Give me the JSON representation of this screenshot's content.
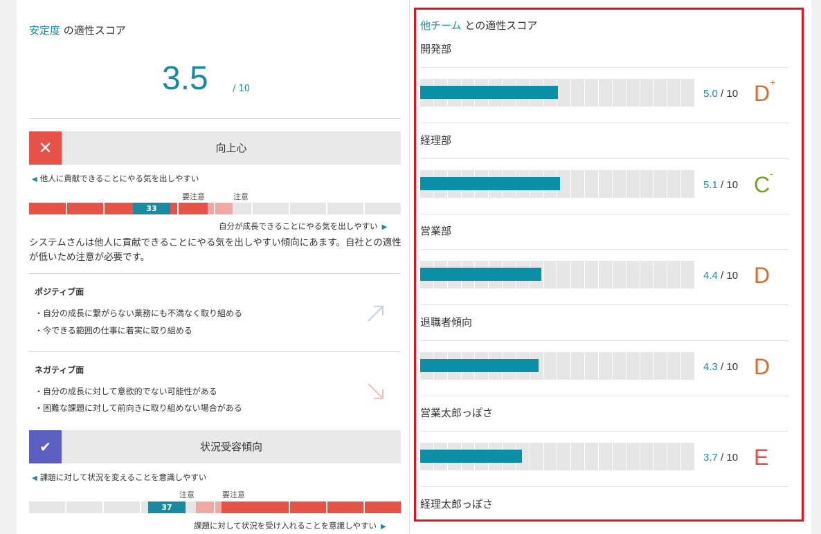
{
  "left": {
    "score_title_accent": "安定度",
    "score_title_rest": "の適性スコア",
    "score": "3.5",
    "score_total": "/ 10",
    "traits": [
      {
        "name": "向上心",
        "status": "ng",
        "mark_color": "#e55348",
        "left_hint": "他人に貢献できることにやる気を出しやすい",
        "right_hint": "自分が成長できることにやる気を出しやすい",
        "value": 33,
        "zones": [
          "要注意",
          "注意"
        ]
      },
      {
        "name": "状況受容傾向",
        "status": "ok",
        "mark_color": "#5c5fbf",
        "left_hint": "課題に対して状況を変えることを意識しやすい",
        "right_hint": "課題に対して状況を受け入れることを意識しやすい",
        "value": 37,
        "zones": [
          "注意",
          "要注意"
        ]
      }
    ],
    "description": "システムさんは他人に貢献できることにやる気を出しやすい傾向にあます。自社との適性が低いため注意が必要です。",
    "positive": {
      "title": "ポジティブ面",
      "items": [
        "自分の成長に繋がらない業務にも不満なく取り組める",
        "今できる範囲の仕事に着実に取り組める"
      ]
    },
    "negative": {
      "title": "ネガティブ面",
      "items": [
        "自分の成長に対して意欲的でない可能性がある",
        "困難な課題に対して前向きに取り組めない場合がある"
      ]
    },
    "colors": {
      "danger": "#e55348",
      "caution": "#f0a8a3",
      "accent": "#1a8aa0"
    }
  },
  "right": {
    "title_accent": "他チーム",
    "title_rest": "との適性スコア",
    "teams": [
      {
        "name": "開発部",
        "score": 5.0,
        "score_text": "5.0",
        "total": "/ 10",
        "grade": "D",
        "grade_mod": "+",
        "grade_color": "#d86b2a"
      },
      {
        "name": "経理部",
        "score": 5.1,
        "score_text": "5.1",
        "total": "/ 10",
        "grade": "C",
        "grade_mod": "-",
        "grade_color": "#6fa81c"
      },
      {
        "name": "営業部",
        "score": 4.4,
        "score_text": "4.4",
        "total": "/ 10",
        "grade": "D",
        "grade_mod": "",
        "grade_color": "#d86b2a"
      },
      {
        "name": "退職者傾向",
        "score": 4.3,
        "score_text": "4.3",
        "total": "/ 10",
        "grade": "D",
        "grade_mod": "",
        "grade_color": "#d86b2a"
      },
      {
        "name": "営業太郎っぽさ",
        "score": 3.7,
        "score_text": "3.7",
        "total": "/ 10",
        "grade": "E",
        "grade_mod": "",
        "grade_color": "#e0504a"
      },
      {
        "name": "経理太郎っぽさ"
      }
    ]
  }
}
